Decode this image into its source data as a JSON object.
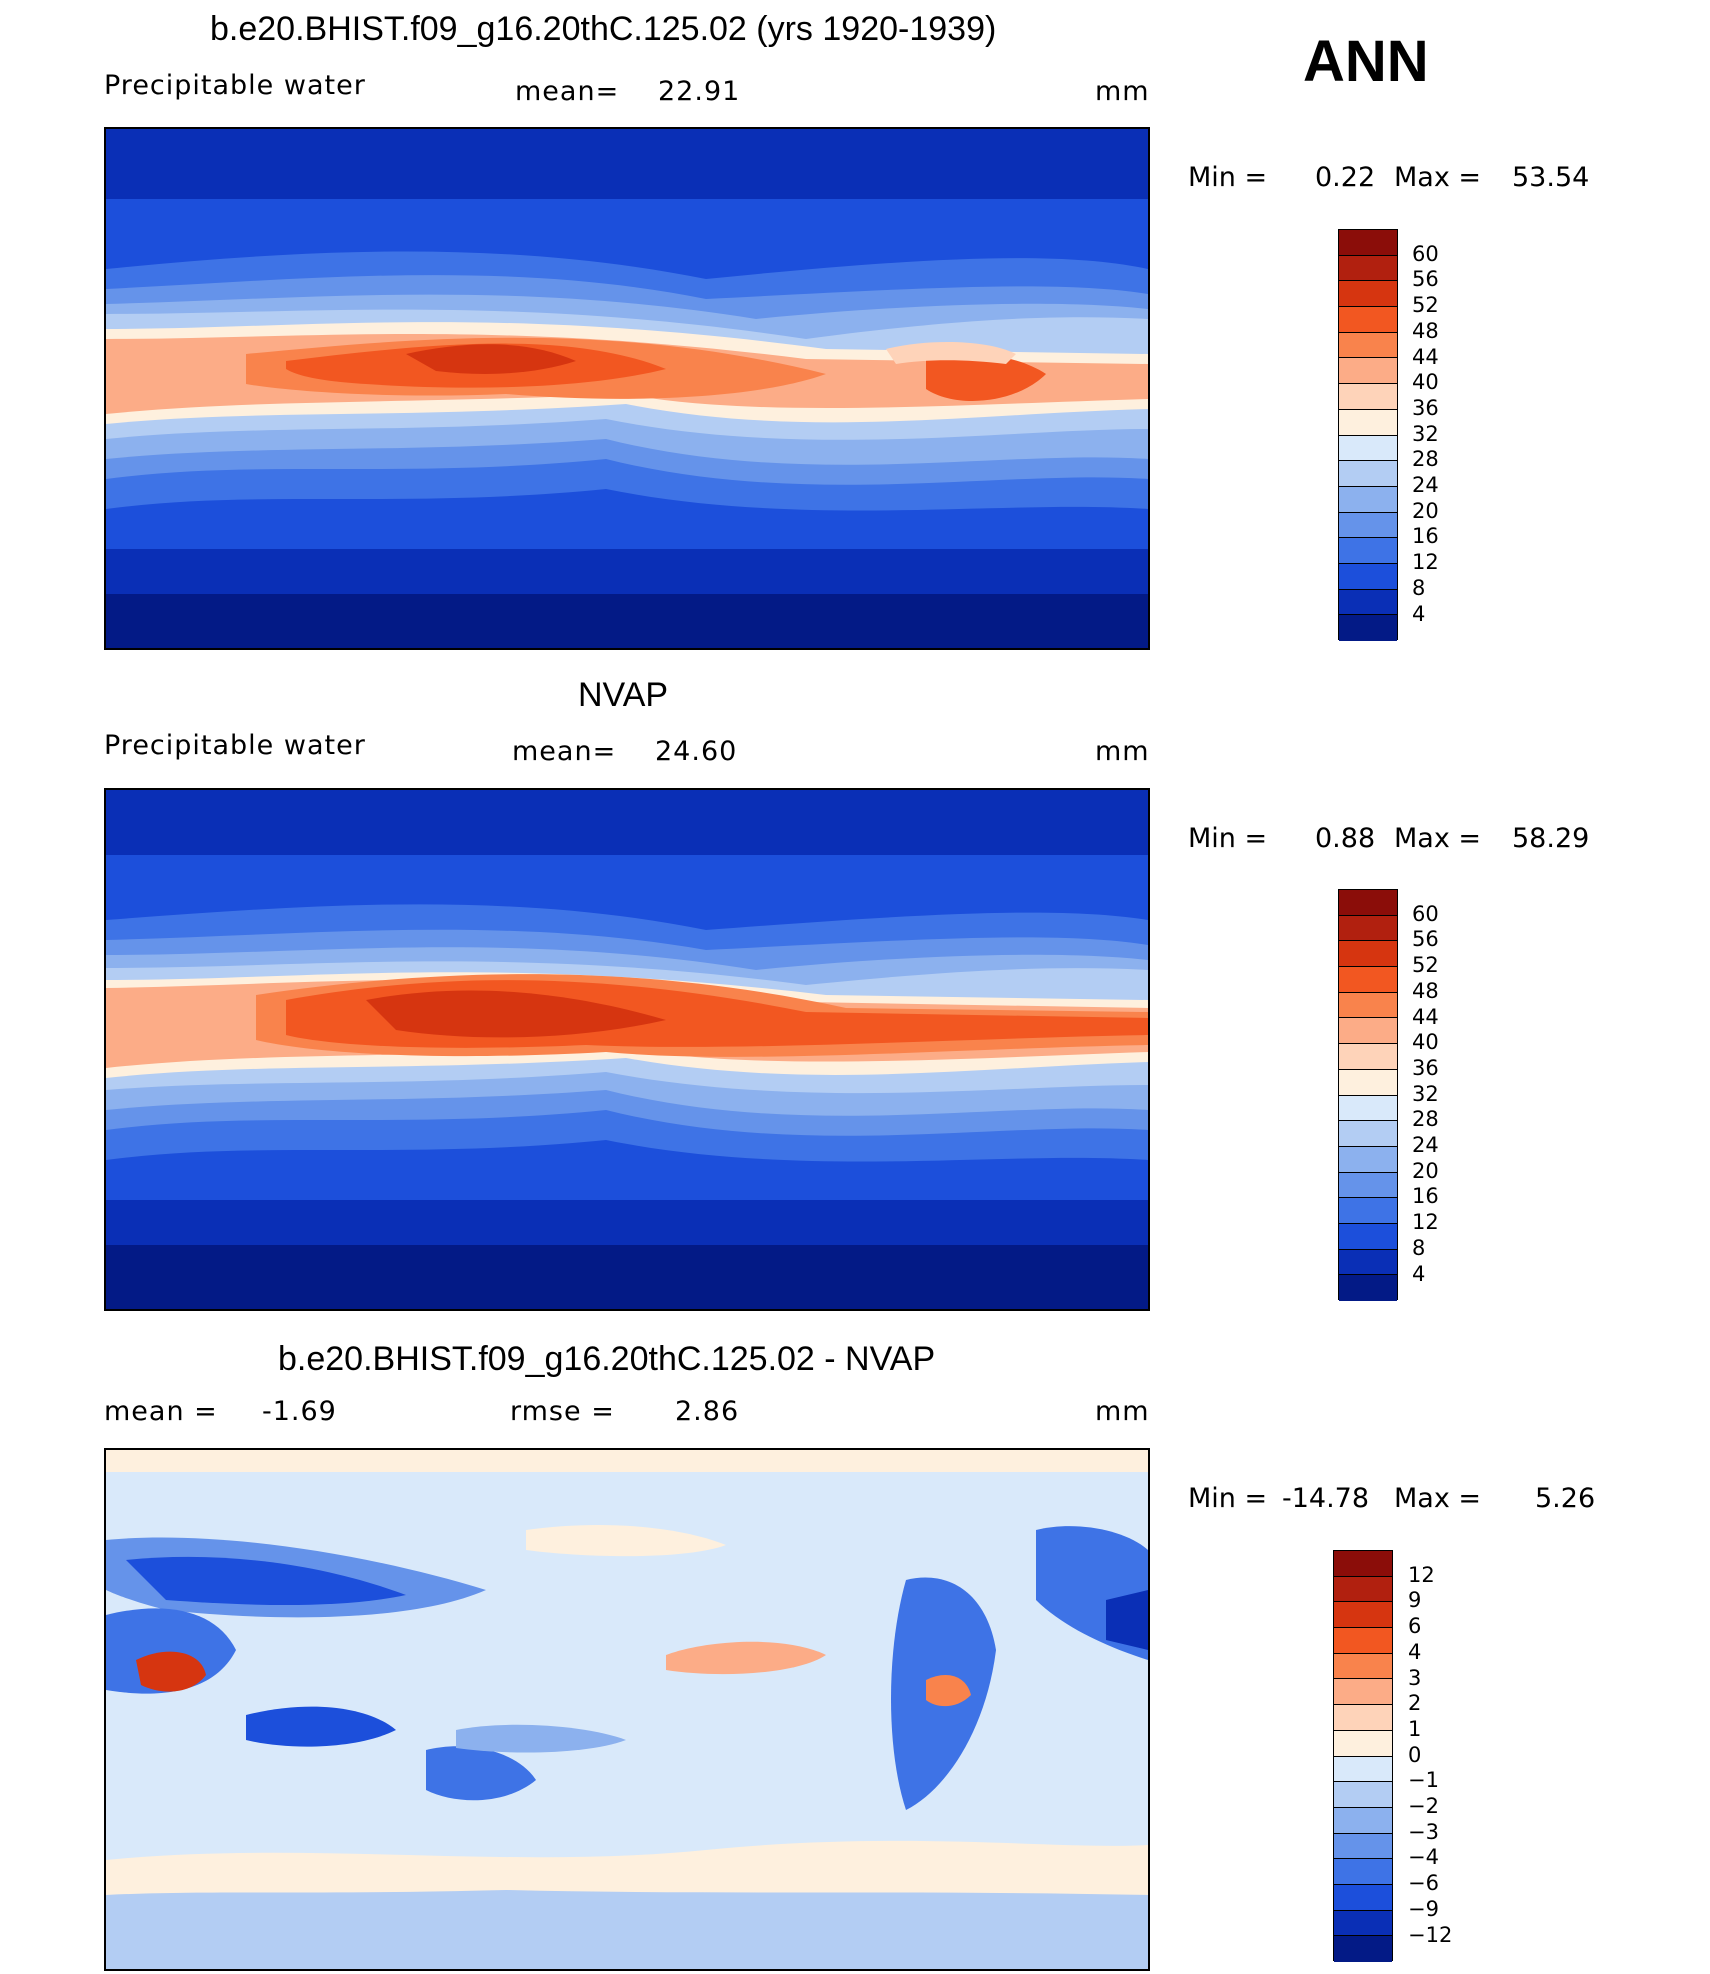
{
  "page": {
    "season_label": "ANN"
  },
  "panels": [
    {
      "title": "b.e20.BHIST.f09_g16.20thC.125.02 (yrs 1920-1939)",
      "variable": "Precipitable water",
      "stat1_label": "mean=",
      "stat1_value": "22.91",
      "units": "mm",
      "min_label": "Min =",
      "min_value": "0.22",
      "max_label": "Max =",
      "max_value": "53.54",
      "colorbar": {
        "labels": [
          "60",
          "56",
          "52",
          "48",
          "44",
          "40",
          "36",
          "32",
          "28",
          "24",
          "20",
          "16",
          "12",
          "8",
          "4"
        ],
        "colors": [
          "#8b0d09",
          "#b1200f",
          "#d63510",
          "#f25721",
          "#f9834c",
          "#fcac87",
          "#fed3b9",
          "#fef0de",
          "#d9e9fa",
          "#b3cdf3",
          "#8cb1ee",
          "#6593ea",
          "#3e73e6",
          "#1c4fdb",
          "#0a2fb6",
          "#031a86"
        ]
      }
    },
    {
      "title": "NVAP",
      "variable": "Precipitable water",
      "stat1_label": "mean=",
      "stat1_value": "24.60",
      "units": "mm",
      "min_label": "Min =",
      "min_value": "0.88",
      "max_label": "Max =",
      "max_value": "58.29",
      "colorbar": {
        "labels": [
          "60",
          "56",
          "52",
          "48",
          "44",
          "40",
          "36",
          "32",
          "28",
          "24",
          "20",
          "16",
          "12",
          "8",
          "4"
        ],
        "colors": [
          "#8b0d09",
          "#b1200f",
          "#d63510",
          "#f25721",
          "#f9834c",
          "#fcac87",
          "#fed3b9",
          "#fef0de",
          "#d9e9fa",
          "#b3cdf3",
          "#8cb1ee",
          "#6593ea",
          "#3e73e6",
          "#1c4fdb",
          "#0a2fb6",
          "#031a86"
        ]
      }
    },
    {
      "title": "b.e20.BHIST.f09_g16.20thC.125.02 - NVAP",
      "variable_label": "mean =",
      "variable_value": "-1.69",
      "stat1_label": "rmse =",
      "stat1_value": "2.86",
      "units": "mm",
      "min_label": "Min =",
      "min_value": "-14.78",
      "max_label": "Max =",
      "max_value": "5.26",
      "colorbar": {
        "labels": [
          "12",
          "9",
          "6",
          "4",
          "3",
          "2",
          "1",
          "0",
          "-1",
          "-2",
          "-3",
          "-4",
          "-6",
          "-9",
          "-12"
        ],
        "colors": [
          "#8b0d09",
          "#b1200f",
          "#d63510",
          "#f25721",
          "#f9834c",
          "#fcac87",
          "#fed3b9",
          "#fef0de",
          "#d9e9fa",
          "#b3cdf3",
          "#8cb1ee",
          "#6593ea",
          "#3e73e6",
          "#1c4fdb",
          "#0a2fb6",
          "#031a86"
        ]
      }
    }
  ]
}
